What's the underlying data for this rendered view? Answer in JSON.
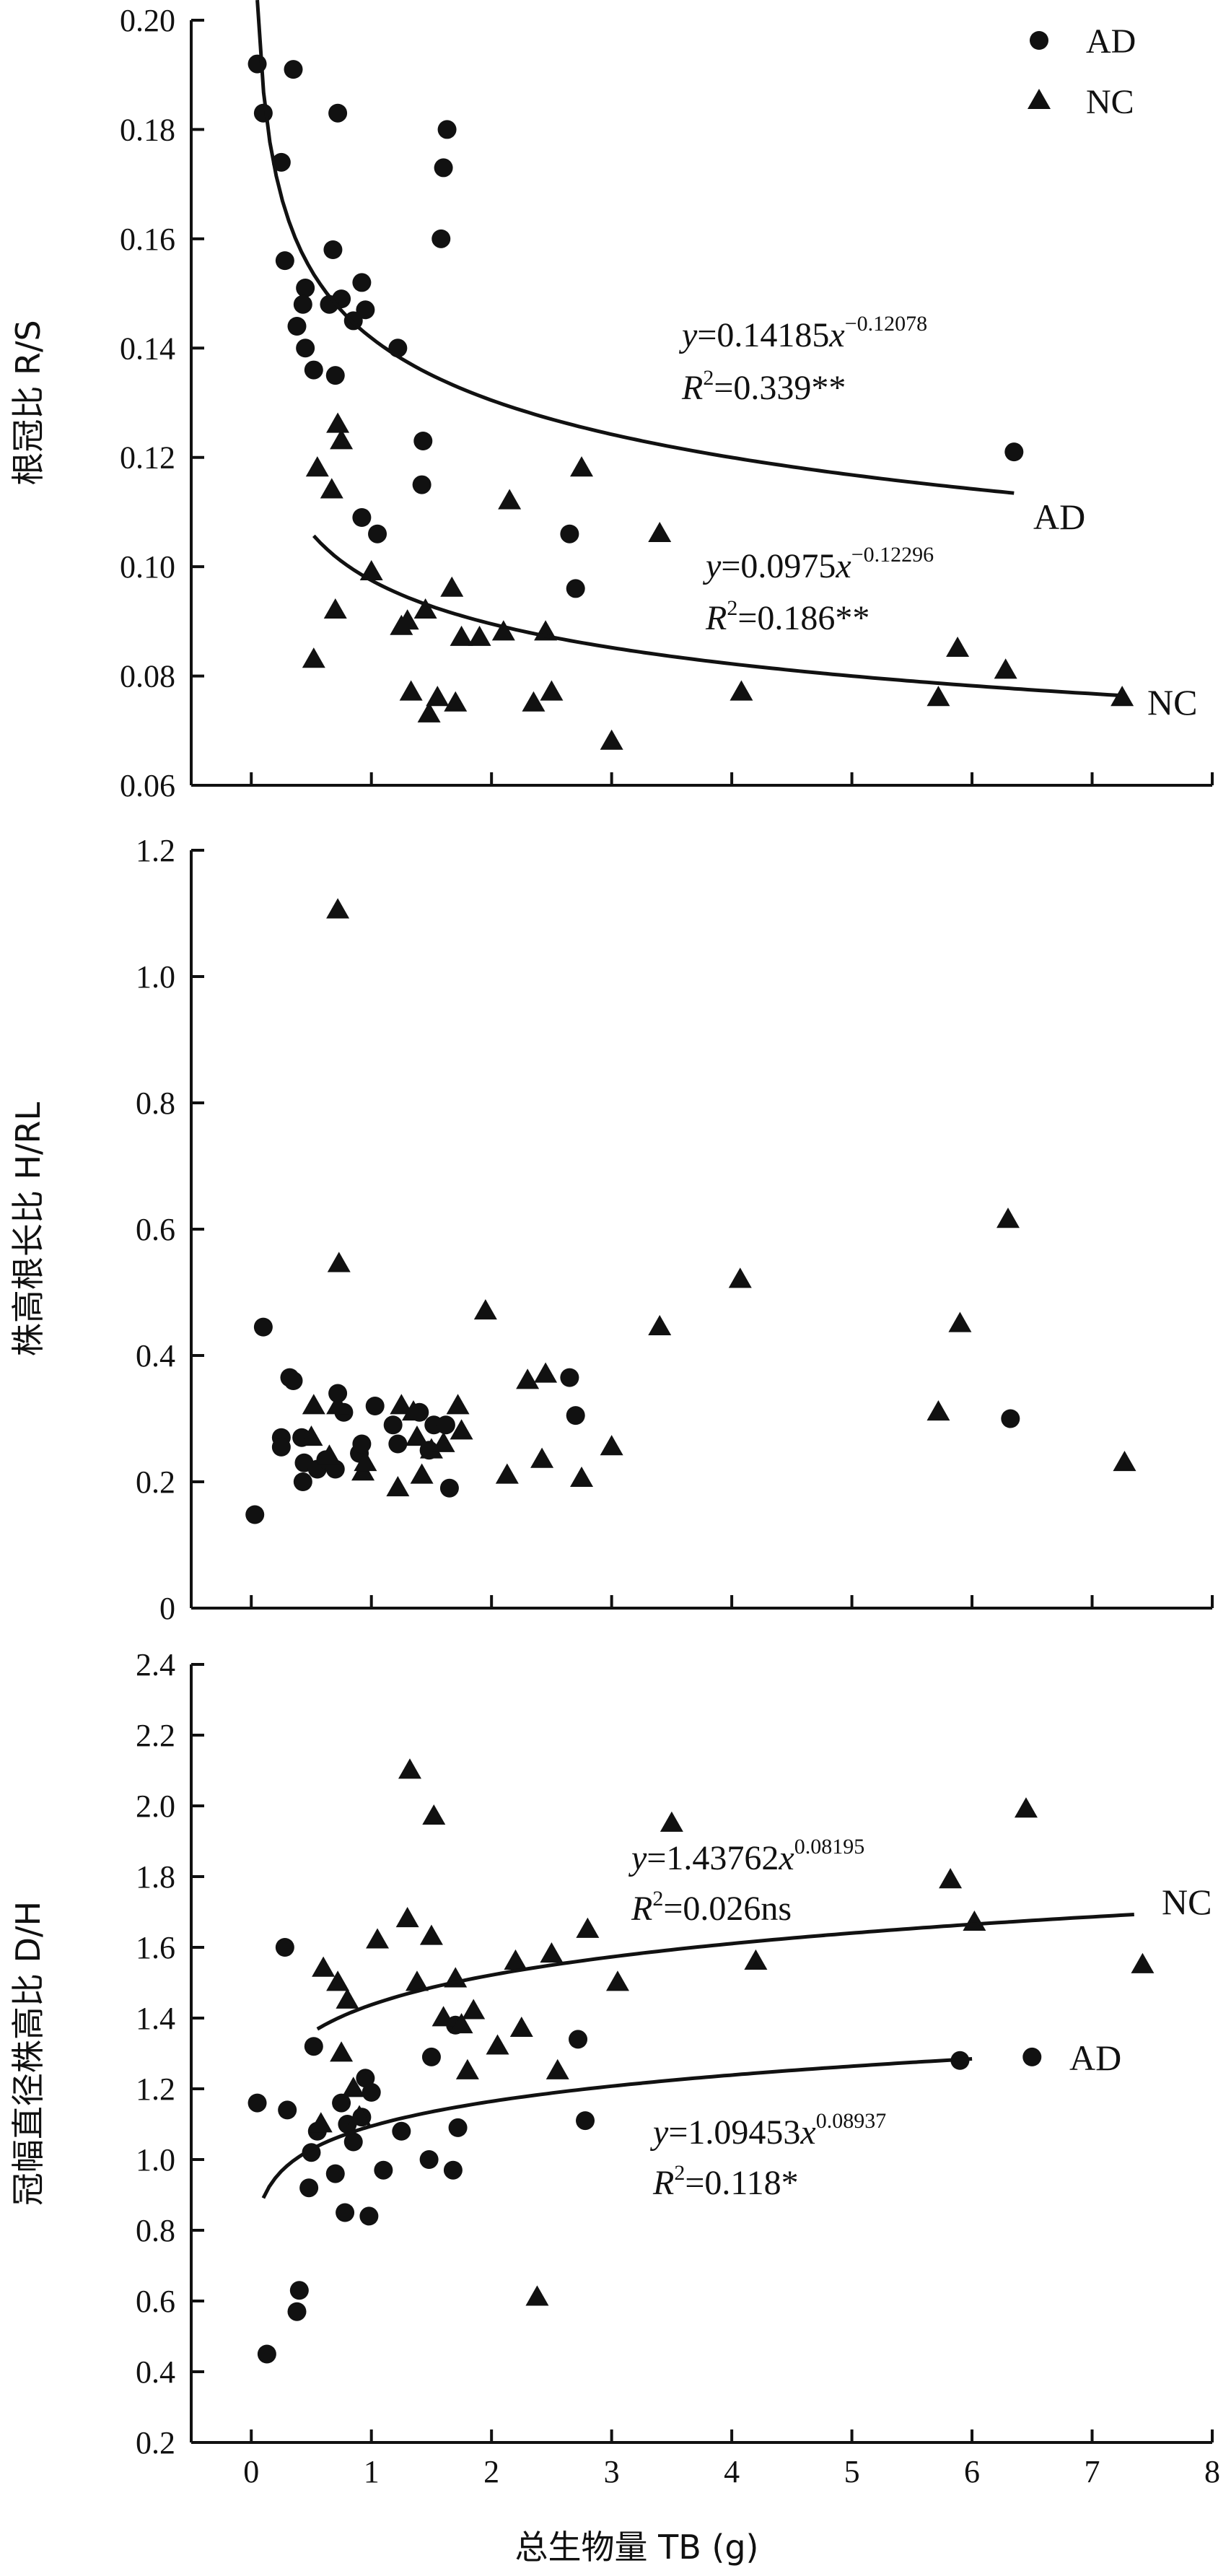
{
  "chart_data": [
    {
      "type": "scatter",
      "ylabel": "根冠比 R/S",
      "ylim": [
        0.06,
        0.2
      ],
      "yticks": [
        "0.06",
        "0.08",
        "0.10",
        "0.12",
        "0.14",
        "0.16",
        "0.18",
        "0.20"
      ],
      "xlim": [
        -0.5,
        8
      ],
      "legend": {
        "position": "top-right",
        "entries": [
          "AD",
          "NC"
        ]
      },
      "series": [
        {
          "name": "AD",
          "marker": "circle",
          "points": [
            [
              0.05,
              0.192
            ],
            [
              0.1,
              0.183
            ],
            [
              0.25,
              0.174
            ],
            [
              0.35,
              0.191
            ],
            [
              0.72,
              0.183
            ],
            [
              1.63,
              0.18
            ],
            [
              1.6,
              0.173
            ],
            [
              1.58,
              0.16
            ],
            [
              0.28,
              0.156
            ],
            [
              0.68,
              0.158
            ],
            [
              0.45,
              0.151
            ],
            [
              0.92,
              0.152
            ],
            [
              0.43,
              0.148
            ],
            [
              0.75,
              0.149
            ],
            [
              0.95,
              0.147
            ],
            [
              0.65,
              0.148
            ],
            [
              0.38,
              0.144
            ],
            [
              0.85,
              0.145
            ],
            [
              0.45,
              0.14
            ],
            [
              0.52,
              0.136
            ],
            [
              0.7,
              0.135
            ],
            [
              1.22,
              0.14
            ],
            [
              1.43,
              0.123
            ],
            [
              1.42,
              0.115
            ],
            [
              0.92,
              0.109
            ],
            [
              1.05,
              0.106
            ],
            [
              2.65,
              0.106
            ],
            [
              2.7,
              0.096
            ],
            [
              6.35,
              0.121
            ]
          ]
        },
        {
          "name": "NC",
          "marker": "triangle",
          "points": [
            [
              0.72,
              0.126
            ],
            [
              0.75,
              0.123
            ],
            [
              0.55,
              0.118
            ],
            [
              0.67,
              0.114
            ],
            [
              0.7,
              0.092
            ],
            [
              1.0,
              0.099
            ],
            [
              0.52,
              0.083
            ],
            [
              1.3,
              0.09
            ],
            [
              1.25,
              0.089
            ],
            [
              1.45,
              0.092
            ],
            [
              1.33,
              0.077
            ],
            [
              1.48,
              0.073
            ],
            [
              1.55,
              0.076
            ],
            [
              1.7,
              0.075
            ],
            [
              1.67,
              0.096
            ],
            [
              1.75,
              0.087
            ],
            [
              1.9,
              0.087
            ],
            [
              2.1,
              0.088
            ],
            [
              2.15,
              0.112
            ],
            [
              2.35,
              0.075
            ],
            [
              2.5,
              0.077
            ],
            [
              2.45,
              0.088
            ],
            [
              2.75,
              0.118
            ],
            [
              3.0,
              0.068
            ],
            [
              3.4,
              0.106
            ],
            [
              4.08,
              0.077
            ],
            [
              5.72,
              0.076
            ],
            [
              5.88,
              0.085
            ],
            [
              6.28,
              0.081
            ],
            [
              7.25,
              0.076
            ]
          ]
        }
      ],
      "fits": [
        {
          "series": "AD",
          "a": 0.14185,
          "b": -0.12078,
          "x_range": [
            0.05,
            6.35
          ],
          "label": "AD",
          "eq_prefix": "y",
          "eq_coef": "=0.14185",
          "eq_x": "x",
          "eq_exp": "−0.12078",
          "r2_prefix": "R",
          "r2_sup": "2",
          "r2_value": "=0.339**"
        },
        {
          "series": "NC",
          "a": 0.0975,
          "b": -0.12296,
          "x_range": [
            0.52,
            7.25
          ],
          "label": "NC",
          "eq_prefix": "y",
          "eq_coef": "=0.0975",
          "eq_x": "x",
          "eq_exp": "−0.12296",
          "r2_prefix": "R",
          "r2_sup": "2",
          "r2_value": "=0.186**"
        }
      ]
    },
    {
      "type": "scatter",
      "ylabel": "株高根长比 H/RL",
      "ylim": [
        0,
        1.2
      ],
      "yticks": [
        "0",
        "0.2",
        "0.4",
        "0.6",
        "0.8",
        "1.0",
        "1.2"
      ],
      "xlim": [
        -0.5,
        8
      ],
      "series": [
        {
          "name": "AD",
          "marker": "circle",
          "points": [
            [
              0.03,
              0.148
            ],
            [
              0.1,
              0.445
            ],
            [
              0.32,
              0.365
            ],
            [
              0.35,
              0.36
            ],
            [
              0.25,
              0.27
            ],
            [
              0.25,
              0.255
            ],
            [
              0.42,
              0.27
            ],
            [
              0.44,
              0.23
            ],
            [
              0.43,
              0.2
            ],
            [
              0.55,
              0.22
            ],
            [
              0.62,
              0.235
            ],
            [
              0.7,
              0.22
            ],
            [
              0.72,
              0.34
            ],
            [
              0.77,
              0.31
            ],
            [
              0.9,
              0.245
            ],
            [
              0.92,
              0.26
            ],
            [
              1.03,
              0.32
            ],
            [
              1.18,
              0.29
            ],
            [
              1.22,
              0.26
            ],
            [
              1.4,
              0.31
            ],
            [
              1.48,
              0.25
            ],
            [
              1.52,
              0.29
            ],
            [
              1.62,
              0.29
            ],
            [
              1.65,
              0.19
            ],
            [
              2.65,
              0.365
            ],
            [
              2.7,
              0.305
            ],
            [
              6.32,
              0.3
            ]
          ]
        },
        {
          "name": "NC",
          "marker": "triangle",
          "points": [
            [
              0.72,
              1.105
            ],
            [
              0.73,
              0.545
            ],
            [
              0.52,
              0.32
            ],
            [
              0.5,
              0.27
            ],
            [
              0.65,
              0.24
            ],
            [
              0.72,
              0.32
            ],
            [
              0.93,
              0.215
            ],
            [
              0.95,
              0.23
            ],
            [
              1.22,
              0.19
            ],
            [
              1.25,
              0.32
            ],
            [
              1.35,
              0.31
            ],
            [
              1.38,
              0.27
            ],
            [
              1.42,
              0.21
            ],
            [
              1.5,
              0.25
            ],
            [
              1.6,
              0.26
            ],
            [
              1.72,
              0.32
            ],
            [
              1.75,
              0.28
            ],
            [
              1.95,
              0.47
            ],
            [
              2.13,
              0.21
            ],
            [
              2.3,
              0.36
            ],
            [
              2.45,
              0.37
            ],
            [
              2.42,
              0.235
            ],
            [
              2.75,
              0.205
            ],
            [
              3.0,
              0.255
            ],
            [
              3.4,
              0.445
            ],
            [
              4.07,
              0.52
            ],
            [
              5.72,
              0.31
            ],
            [
              5.9,
              0.45
            ],
            [
              6.3,
              0.615
            ],
            [
              7.27,
              0.23
            ]
          ]
        }
      ]
    },
    {
      "type": "scatter",
      "ylabel": "冠幅直径株高比 D/H",
      "xlabel": "总生物量 TB (g)",
      "ylim": [
        0.2,
        2.4
      ],
      "yticks": [
        "0.2",
        "0.4",
        "0.6",
        "0.8",
        "1.0",
        "1.2",
        "1.4",
        "1.6",
        "1.8",
        "2.0",
        "2.2",
        "2.4"
      ],
      "xlim": [
        -0.5,
        8
      ],
      "xticks": [
        "0",
        "1",
        "2",
        "3",
        "4",
        "5",
        "6",
        "7",
        "8"
      ],
      "series": [
        {
          "name": "AD",
          "marker": "circle",
          "points": [
            [
              0.05,
              1.16
            ],
            [
              0.13,
              0.45
            ],
            [
              0.28,
              1.6
            ],
            [
              0.3,
              1.14
            ],
            [
              0.38,
              0.57
            ],
            [
              0.4,
              0.63
            ],
            [
              0.48,
              0.92
            ],
            [
              0.5,
              1.02
            ],
            [
              0.52,
              1.32
            ],
            [
              0.55,
              1.08
            ],
            [
              0.7,
              0.96
            ],
            [
              0.75,
              1.16
            ],
            [
              0.78,
              0.85
            ],
            [
              0.8,
              1.1
            ],
            [
              0.85,
              1.05
            ],
            [
              0.92,
              1.12
            ],
            [
              0.95,
              1.23
            ],
            [
              0.98,
              0.84
            ],
            [
              1.0,
              1.19
            ],
            [
              1.1,
              0.97
            ],
            [
              1.25,
              1.08
            ],
            [
              1.48,
              1.0
            ],
            [
              1.5,
              1.29
            ],
            [
              1.68,
              0.97
            ],
            [
              1.72,
              1.09
            ],
            [
              1.7,
              1.38
            ],
            [
              2.72,
              1.34
            ],
            [
              2.78,
              1.11
            ],
            [
              5.9,
              1.28
            ],
            [
              6.5,
              1.29
            ]
          ]
        },
        {
          "name": "NC",
          "marker": "triangle",
          "points": [
            [
              0.6,
              1.54
            ],
            [
              0.72,
              1.5
            ],
            [
              0.75,
              1.3
            ],
            [
              0.8,
              1.45
            ],
            [
              0.85,
              1.2
            ],
            [
              0.58,
              1.1
            ],
            [
              0.9,
              1.12
            ],
            [
              1.05,
              1.62
            ],
            [
              1.3,
              1.68
            ],
            [
              1.32,
              2.1
            ],
            [
              1.38,
              1.5
            ],
            [
              1.5,
              1.63
            ],
            [
              1.52,
              1.97
            ],
            [
              1.6,
              1.4
            ],
            [
              1.7,
              1.51
            ],
            [
              1.75,
              1.38
            ],
            [
              1.85,
              1.42
            ],
            [
              1.8,
              1.25
            ],
            [
              2.05,
              1.32
            ],
            [
              2.2,
              1.56
            ],
            [
              2.25,
              1.37
            ],
            [
              2.38,
              0.61
            ],
            [
              2.5,
              1.58
            ],
            [
              2.55,
              1.25
            ],
            [
              2.8,
              1.65
            ],
            [
              3.05,
              1.5
            ],
            [
              3.5,
              1.95
            ],
            [
              4.2,
              1.56
            ],
            [
              5.82,
              1.79
            ],
            [
              6.02,
              1.67
            ],
            [
              6.45,
              1.99
            ],
            [
              7.42,
              1.55
            ]
          ]
        }
      ],
      "fits": [
        {
          "series": "NC",
          "a": 1.43762,
          "b": 0.08195,
          "x_range": [
            0.55,
            7.35
          ],
          "label": "NC",
          "eq_prefix": "y",
          "eq_coef": "=1.43762",
          "eq_x": "x",
          "eq_exp": "0.08195",
          "r2_prefix": "R",
          "r2_sup": "2",
          "r2_value": "=0.026ns"
        },
        {
          "series": "AD",
          "a": 1.09453,
          "b": 0.08937,
          "x_range": [
            0.1,
            6.0
          ],
          "label": "AD",
          "eq_prefix": "y",
          "eq_coef": "=1.09453",
          "eq_x": "x",
          "eq_exp": "0.08937",
          "r2_prefix": "R",
          "r2_sup": "2",
          "r2_value": "=0.118*"
        }
      ]
    }
  ]
}
